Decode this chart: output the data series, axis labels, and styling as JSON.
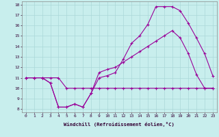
{
  "xlabel": "Windchill (Refroidissement éolien,°C)",
  "bg_color": "#c8eeed",
  "grid_color": "#aad8d8",
  "line_color": "#990099",
  "xlim": [
    -0.5,
    23.5
  ],
  "ylim": [
    7.7,
    18.3
  ],
  "xticks": [
    0,
    1,
    2,
    3,
    4,
    5,
    6,
    7,
    8,
    9,
    10,
    11,
    12,
    13,
    14,
    15,
    16,
    17,
    18,
    19,
    20,
    21,
    22,
    23
  ],
  "yticks": [
    8,
    9,
    10,
    11,
    12,
    13,
    14,
    15,
    16,
    17,
    18
  ],
  "series1_x": [
    0,
    1,
    2,
    3,
    4,
    5,
    6,
    7,
    8,
    9,
    10,
    11,
    12,
    13,
    14,
    15,
    16,
    17,
    18,
    19,
    20,
    21,
    22,
    23
  ],
  "series1_y": [
    11,
    11,
    11,
    10.5,
    8.2,
    8.2,
    8.5,
    8.2,
    9.5,
    11,
    11.2,
    11.5,
    12.8,
    14.3,
    15.0,
    16.1,
    17.8,
    17.8,
    17.8,
    17.4,
    16.2,
    14.8,
    13.3,
    11.2
  ],
  "series2_x": [
    0,
    1,
    2,
    3,
    4,
    5,
    6,
    7,
    8,
    9,
    10,
    11,
    12,
    13,
    14,
    15,
    16,
    17,
    18,
    19,
    20,
    21,
    22,
    23
  ],
  "series2_y": [
    11,
    11,
    11,
    10.5,
    8.2,
    8.2,
    8.5,
    8.2,
    9.5,
    11.5,
    11.8,
    12.0,
    12.5,
    13.0,
    13.5,
    14.0,
    14.5,
    15.0,
    15.5,
    14.8,
    13.3,
    11.3,
    10.0,
    10.0
  ],
  "series3_x": [
    0,
    1,
    2,
    3,
    4,
    5,
    6,
    7,
    8,
    9,
    10,
    11,
    12,
    13,
    14,
    15,
    16,
    17,
    18,
    19,
    20,
    21,
    22,
    23
  ],
  "series3_y": [
    11,
    11,
    11,
    11,
    11,
    10,
    10,
    10,
    10,
    10,
    10,
    10,
    10,
    10,
    10,
    10,
    10,
    10,
    10,
    10,
    10,
    10,
    10,
    10
  ]
}
